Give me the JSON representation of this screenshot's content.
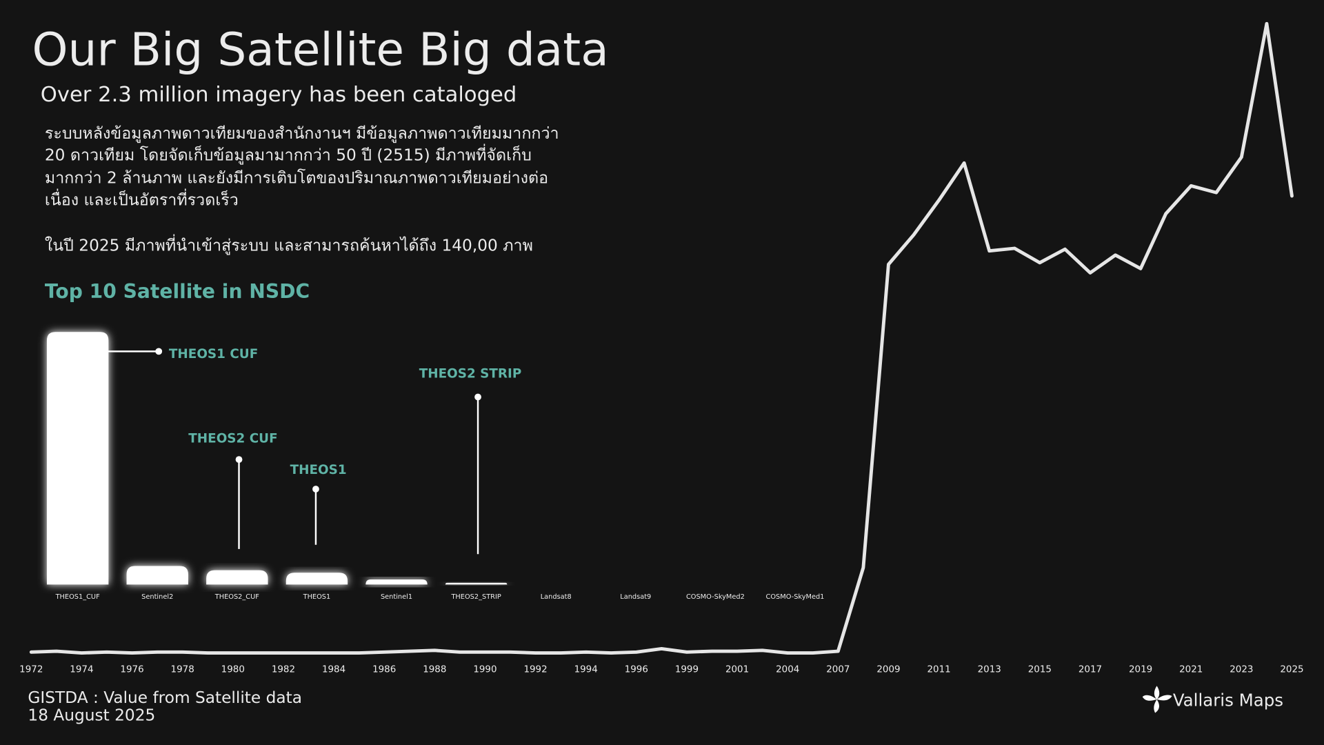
{
  "header": {
    "title": "Our Big Satellite Big data",
    "subtitle": "Over 2.3 million imagery  has been cataloged",
    "body": [
      "ระบบหลังข้อมูลภาพดาวเทียมของสำนักงานฯ มีข้อมูลภาพดาวเทียมมากกว่า",
      "20 ดาวเทียม โดยจัดเก็บข้อมูลมามากกว่า 50 ปี (2515) มีภาพที่จัดเก็บ",
      "มากกว่า 2 ล้านภาพ และยังมีการเติบโตของปริมาณภาพดาวเทียมอย่างต่อ",
      "เนื่อง และเป็นอัตราที่รวดเร็ว"
    ],
    "note": "ในปี 2025 มีภาพที่นำเข้าสู่ระบบ และสามารถค้นหาได้ถึง 140,00 ภาพ"
  },
  "footer": {
    "source": "GISTDA : Value from Satellite data",
    "date": "18 August 2025",
    "brand": "Vallaris Maps"
  },
  "chart_data": [
    {
      "type": "bar",
      "title": "Top 10 Satellite in NSDC",
      "categories": [
        "THEOS1_CUF",
        "Sentinel2",
        "THEOS2_CUF",
        "THEOS1",
        "Sentinel1",
        "THEOS2_STRIP",
        "Landsat8",
        "Landsat9",
        "COSMO-SkyMed2",
        "COSMO-SkyMed1"
      ],
      "values": [
        300,
        22,
        17,
        14,
        6,
        2,
        0,
        0,
        0,
        0
      ],
      "color": "#ffffff",
      "ylim": [
        0,
        300
      ],
      "annotations": [
        "THEOS1 CUF",
        "THEOS2 CUF",
        "THEOS1",
        "THEOS2 STRIP"
      ],
      "annotation_color": "#5fb3a6"
    },
    {
      "type": "line",
      "categories": [
        "1972",
        null,
        "1974",
        null,
        "1976",
        null,
        "1978",
        null,
        "1980",
        null,
        "1982",
        null,
        "1984",
        null,
        "1986",
        null,
        "1988",
        null,
        "1990",
        null,
        "1992",
        null,
        "1994",
        null,
        "1996",
        null,
        "1999",
        null,
        "2001",
        null,
        "2004",
        null,
        "2007",
        null,
        "2009",
        null,
        "2011",
        null,
        "2013",
        null,
        "2015",
        null,
        "2017",
        null,
        "2019",
        null,
        "2021",
        null,
        "2023",
        null,
        "2025"
      ],
      "values": [
        1,
        2,
        0,
        1,
        0,
        1,
        1,
        0,
        0,
        0,
        0,
        0,
        0,
        0,
        1,
        2,
        3,
        1,
        1,
        1,
        0,
        0,
        1,
        0,
        1,
        5,
        1,
        2,
        2,
        3,
        0,
        0,
        2,
        101,
        460,
        495,
        536,
        580,
        476,
        479,
        462,
        478,
        450,
        471,
        455,
        520,
        553,
        545,
        587,
        745,
        541
      ],
      "color": "#e6e6e6",
      "ylim": [
        0,
        745
      ]
    }
  ]
}
